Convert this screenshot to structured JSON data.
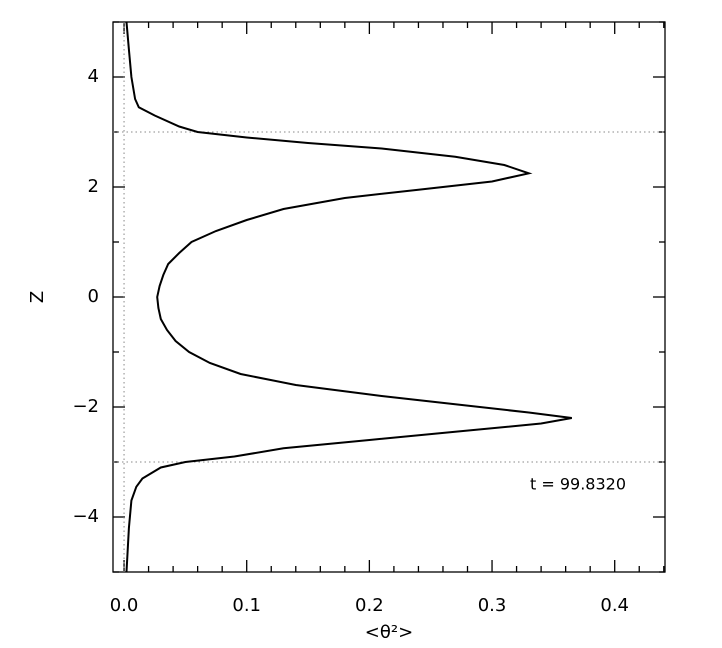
{
  "chart_data": {
    "type": "line",
    "xlabel": "<θ²>",
    "ylabel": "Z",
    "annotation": "t = 99.8320",
    "xlim": [
      -0.009,
      0.441
    ],
    "ylim": [
      -5,
      5
    ],
    "xticks": [
      {
        "value": 0,
        "label": "0.0"
      },
      0.1,
      0.2,
      0.3,
      0.4
    ],
    "yticks": [
      -4,
      -2,
      0,
      2,
      4
    ],
    "xminorticks": [
      0.02,
      0.04,
      0.06,
      0.08,
      0.12,
      0.14,
      0.16,
      0.18,
      0.22,
      0.24,
      0.26,
      0.28,
      0.32,
      0.34,
      0.36,
      0.38,
      0.42,
      0.44
    ],
    "yminorticks": [
      -5,
      -3,
      -1,
      1,
      3,
      5
    ],
    "reference_lines": {
      "x": [
        0
      ],
      "y": [
        -3,
        3
      ]
    },
    "y": [
      5,
      4.5,
      4,
      3.6,
      3.45,
      3.3,
      3.1,
      3.0,
      2.9,
      2.8,
      2.7,
      2.55,
      2.4,
      2.25,
      2.1,
      1.95,
      1.8,
      1.6,
      1.4,
      1.2,
      1.0,
      0.8,
      0.6,
      0.4,
      0.2,
      0,
      -0.2,
      -0.4,
      -0.6,
      -0.8,
      -1.0,
      -1.2,
      -1.4,
      -1.6,
      -1.8,
      -1.95,
      -2.1,
      -2.2,
      -2.3,
      -2.45,
      -2.6,
      -2.75,
      -2.9,
      -3.0,
      -3.1,
      -3.3,
      -3.45,
      -3.7,
      -4.2,
      -5
    ],
    "series": [
      {
        "color": "#000000",
        "values": [
          0.002,
          0.004,
          0.006,
          0.009,
          0.012,
          0.025,
          0.045,
          0.06,
          0.1,
          0.15,
          0.21,
          0.27,
          0.31,
          0.33,
          0.3,
          0.24,
          0.18,
          0.13,
          0.1,
          0.075,
          0.055,
          0.045,
          0.036,
          0.032,
          0.029,
          0.027,
          0.028,
          0.03,
          0.035,
          0.042,
          0.053,
          0.07,
          0.095,
          0.14,
          0.21,
          0.27,
          0.33,
          0.365,
          0.34,
          0.27,
          0.2,
          0.13,
          0.09,
          0.05,
          0.03,
          0.015,
          0.01,
          0.006,
          0.004,
          0.002
        ]
      }
    ]
  }
}
